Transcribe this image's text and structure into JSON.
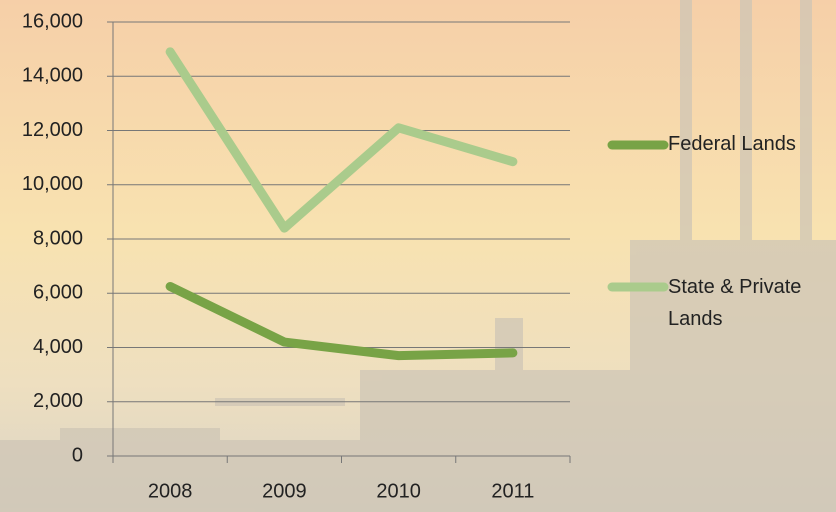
{
  "chart_data": {
    "type": "line",
    "categories": [
      "2008",
      "2009",
      "2010",
      "2011"
    ],
    "series": [
      {
        "name": "Federal Lands",
        "color": "#78a346",
        "values": [
          6250,
          4200,
          3700,
          3800
        ]
      },
      {
        "name": "State & Private Lands",
        "color": "#aacb8c",
        "values": [
          14900,
          8400,
          12100,
          10850
        ]
      }
    ],
    "ylim": [
      0,
      16000
    ],
    "yticks": [
      0,
      {
        "value": 2000,
        "label": "2,000"
      },
      {
        "value": 4000,
        "label": "4,000"
      },
      {
        "value": 6000,
        "label": "6,000"
      },
      {
        "value": 8000,
        "label": "8,000"
      },
      {
        "value": 10000,
        "label": "10,000"
      },
      {
        "value": 12000,
        "label": "12,000"
      },
      {
        "value": 14000,
        "label": "14,000"
      },
      {
        "value": 16000,
        "label": "16,000"
      }
    ],
    "grid": true,
    "legend": "right"
  }
}
